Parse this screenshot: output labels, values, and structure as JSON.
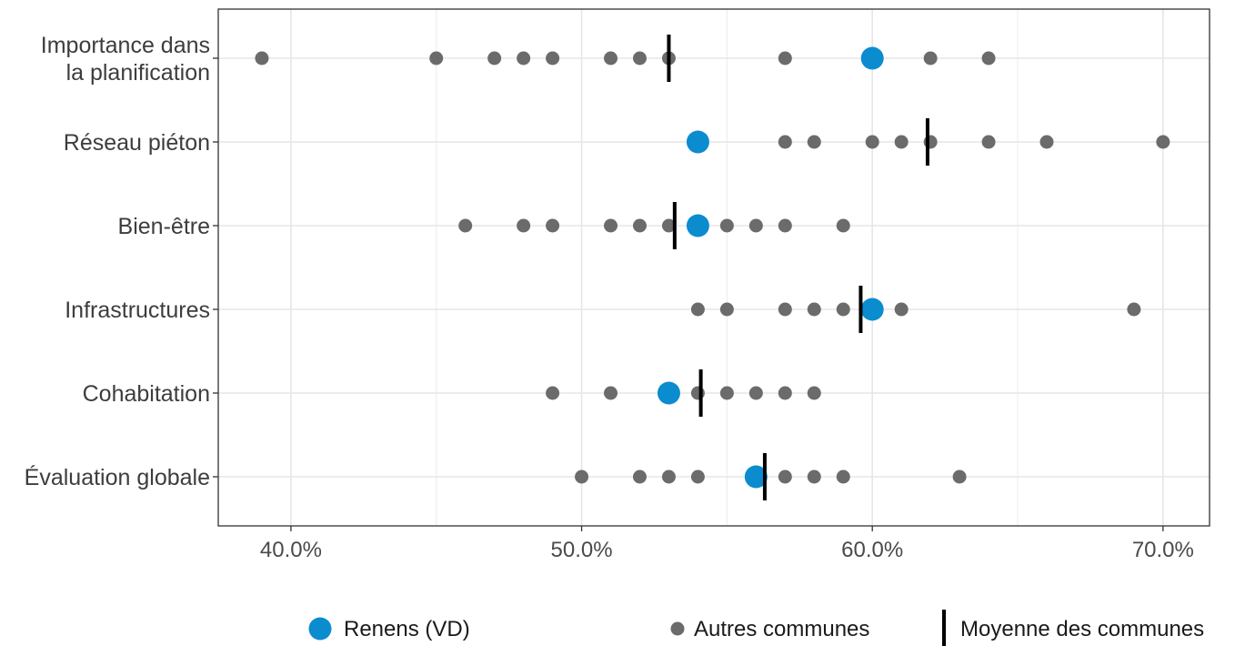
{
  "chart_data": {
    "type": "scatter",
    "title": "",
    "xlabel": "",
    "ylabel": "",
    "xlim": [
      37.5,
      71.6
    ],
    "x_ticks": [
      40,
      50,
      60,
      70
    ],
    "x_tick_labels": [
      "40.0%",
      "50.0%",
      "60.0%",
      "70.0%"
    ],
    "grid": true,
    "legend_position": "bottom",
    "categories": [
      "Importance dans la planification",
      "Réseau piéton",
      "Bien-être",
      "Infrastructures",
      "Cohabitation",
      "Évaluation globale"
    ],
    "category_lines": [
      [
        "Importance dans",
        "la planification"
      ],
      [
        "Réseau piéton"
      ],
      [
        "Bien-être"
      ],
      [
        "Infrastructures"
      ],
      [
        "Cohabitation"
      ],
      [
        "Évaluation globale"
      ]
    ],
    "series": [
      {
        "name": "Autres communes",
        "color": "#6b6b6b",
        "values": [
          [
            39,
            45,
            47,
            48,
            49,
            51,
            52,
            53,
            57,
            62,
            64
          ],
          [
            57,
            58,
            60,
            61,
            62,
            64,
            66,
            70
          ],
          [
            46,
            48,
            49,
            51,
            52,
            53,
            55,
            56,
            57,
            59
          ],
          [
            54,
            55,
            57,
            58,
            59,
            61,
            69
          ],
          [
            49,
            51,
            54,
            55,
            56,
            57,
            58
          ],
          [
            50,
            52,
            53,
            54,
            57,
            58,
            59,
            63
          ]
        ]
      },
      {
        "name": "Renens (VD)",
        "color": "#0b8ccf",
        "values": [
          60,
          54,
          54,
          60,
          53,
          56
        ]
      },
      {
        "name": "Moyenne des communes",
        "color": "#000000",
        "values": [
          53,
          61.9,
          53.2,
          59.6,
          54.1,
          56.3
        ]
      }
    ]
  },
  "legend": {
    "renens_label": "Renens (VD)",
    "autres_label": "Autres communes",
    "moyenne_label": "Moyenne des communes"
  }
}
